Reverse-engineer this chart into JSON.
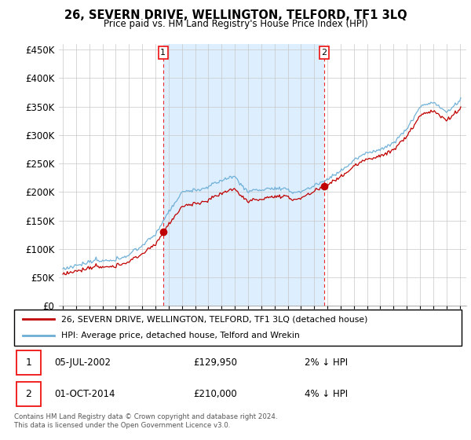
{
  "title": "26, SEVERN DRIVE, WELLINGTON, TELFORD, TF1 3LQ",
  "subtitle": "Price paid vs. HM Land Registry's House Price Index (HPI)",
  "legend_line1": "26, SEVERN DRIVE, WELLINGTON, TELFORD, TF1 3LQ (detached house)",
  "legend_line2": "HPI: Average price, detached house, Telford and Wrekin",
  "annotation1_date": "05-JUL-2002",
  "annotation1_price": "£129,950",
  "annotation1_hpi": "2% ↓ HPI",
  "annotation2_date": "01-OCT-2014",
  "annotation2_price": "£210,000",
  "annotation2_hpi": "4% ↓ HPI",
  "footer": "Contains HM Land Registry data © Crown copyright and database right 2024.\nThis data is licensed under the Open Government Licence v3.0.",
  "hpi_color": "#6baed6",
  "price_color": "#c00000",
  "vline_color": "#ee1111",
  "shade_color": "#ddeeff",
  "background_color": "#ffffff",
  "ylim": [
    0,
    460000
  ],
  "yticks": [
    0,
    50000,
    100000,
    150000,
    200000,
    250000,
    300000,
    350000,
    400000,
    450000
  ],
  "sale1_year": 2002.58,
  "sale1_price": 129950,
  "sale2_year": 2014.75,
  "sale2_price": 210000,
  "xstart": 1995,
  "xend": 2025
}
